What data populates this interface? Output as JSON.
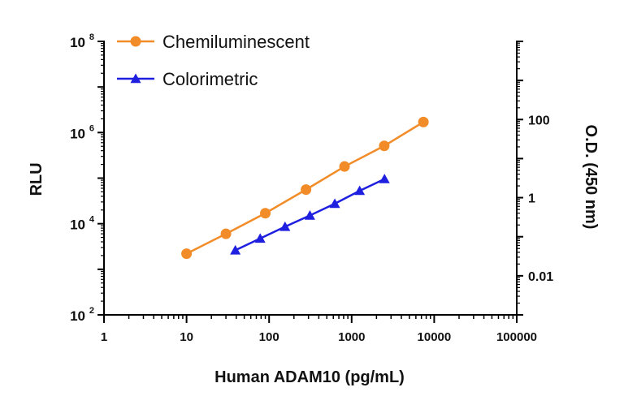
{
  "chart_data": {
    "type": "line",
    "xlabel": "Human ADAM10 (pg/mL)",
    "ylabel": "RLU",
    "y2label": "O.D. (450 nm)",
    "x_scale": "log",
    "y_scale": "log",
    "y2_scale": "log",
    "xlim": [
      1,
      100000
    ],
    "ylim": [
      100,
      100000000
    ],
    "y2lim": [
      0.001,
      10000
    ],
    "x_ticks": [
      "1",
      "10",
      "100",
      "1000",
      "10000",
      "100000"
    ],
    "y_ticks": [
      {
        "base": "10",
        "exp": "2"
      },
      {
        "base": "10",
        "exp": "4"
      },
      {
        "base": "10",
        "exp": "6"
      },
      {
        "base": "10",
        "exp": "8"
      }
    ],
    "y2_ticks": [
      "0.01",
      "1",
      "100"
    ],
    "legend_position": "top-left",
    "series": [
      {
        "name": "Chemiluminescent",
        "axis": "left",
        "color": "#f28c28",
        "marker": "circle",
        "x": [
          10,
          30,
          90,
          280,
          820,
          2480,
          7400
        ],
        "y": [
          2200,
          6000,
          17000,
          56000,
          180000,
          510000,
          1700000
        ]
      },
      {
        "name": "Colorimetric",
        "axis": "right",
        "color": "#1f1fe0",
        "marker": "triangle",
        "x": [
          39,
          78,
          156,
          312,
          625,
          1250,
          2500
        ],
        "y": [
          0.045,
          0.09,
          0.18,
          0.35,
          0.7,
          1.5,
          3.0
        ]
      }
    ]
  }
}
